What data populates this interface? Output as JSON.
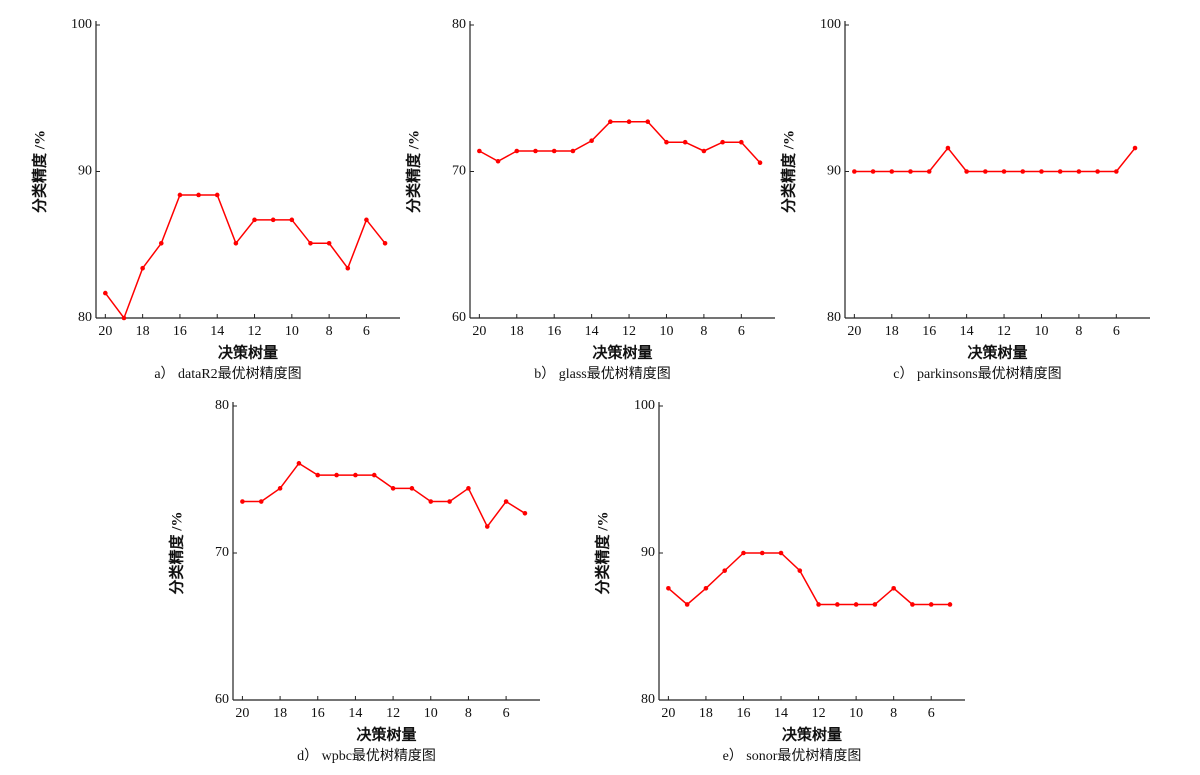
{
  "chart_data": [
    {
      "type": "line",
      "caption": "a） dataR2最优树精度图",
      "xlabel": "决策树量",
      "ylabel": "分类精度 /%",
      "color": "#ff0000",
      "x": [
        20,
        19,
        18,
        17,
        16,
        15,
        14,
        13,
        12,
        11,
        10,
        9,
        8,
        7,
        6,
        5
      ],
      "values": [
        81.7,
        80,
        83.4,
        85.1,
        88.4,
        88.4,
        88.4,
        85.1,
        86.7,
        86.7,
        86.7,
        85.1,
        85.1,
        83.4,
        86.7,
        85.1
      ],
      "xlim": [
        20.5,
        4.2
      ],
      "xticks": [
        20,
        18,
        16,
        14,
        12,
        10,
        8,
        6
      ],
      "ylim": [
        80,
        100
      ],
      "yticks": [
        80,
        90,
        100
      ]
    },
    {
      "type": "line",
      "caption": "b） glass最优树精度图",
      "xlabel": "决策树量",
      "ylabel": "分类精度 /%",
      "color": "#ff0000",
      "x": [
        20,
        19,
        18,
        17,
        16,
        15,
        14,
        13,
        12,
        11,
        10,
        9,
        8,
        7,
        6,
        5
      ],
      "values": [
        71.4,
        70.7,
        71.4,
        71.4,
        71.4,
        71.4,
        72.1,
        73.4,
        73.4,
        73.4,
        72.0,
        72.0,
        71.4,
        72.0,
        72.0,
        70.6
      ],
      "xlim": [
        20.5,
        4.2
      ],
      "xticks": [
        20,
        18,
        16,
        14,
        12,
        10,
        8,
        6
      ],
      "ylim": [
        60,
        80
      ],
      "yticks": [
        60,
        70,
        80
      ]
    },
    {
      "type": "line",
      "caption": "c） parkinsons最优树精度图",
      "xlabel": "决策树量",
      "ylabel": "分类精度 /%",
      "color": "#ff0000",
      "x": [
        20,
        19,
        18,
        17,
        16,
        15,
        14,
        13,
        12,
        11,
        10,
        9,
        8,
        7,
        6,
        5
      ],
      "values": [
        90,
        90,
        90,
        90,
        90,
        91.6,
        90,
        90,
        90,
        90,
        90,
        90,
        90,
        90,
        90,
        91.6
      ],
      "xlim": [
        20.5,
        4.2
      ],
      "xticks": [
        20,
        18,
        16,
        14,
        12,
        10,
        8,
        6
      ],
      "ylim": [
        80,
        100
      ],
      "yticks": [
        80,
        90,
        100
      ]
    },
    {
      "type": "line",
      "caption": "d） wpbc最优树精度图",
      "xlabel": "决策树量",
      "ylabel": "分类精度 /%",
      "color": "#ff0000",
      "x": [
        20,
        19,
        18,
        17,
        16,
        15,
        14,
        13,
        12,
        11,
        10,
        9,
        8,
        7,
        6,
        5
      ],
      "values": [
        73.5,
        73.5,
        74.4,
        76.1,
        75.3,
        75.3,
        75.3,
        75.3,
        74.4,
        74.4,
        73.5,
        73.5,
        74.4,
        71.8,
        73.5,
        72.7
      ],
      "xlim": [
        20.5,
        4.2
      ],
      "xticks": [
        20,
        18,
        16,
        14,
        12,
        10,
        8,
        6
      ],
      "ylim": [
        60,
        80
      ],
      "yticks": [
        60,
        70,
        80
      ]
    },
    {
      "type": "line",
      "caption": "e） sonor最优树精度图",
      "xlabel": "决策树量",
      "ylabel": "分类精度 /%",
      "color": "#ff0000",
      "x": [
        20,
        19,
        18,
        17,
        16,
        15,
        14,
        13,
        12,
        11,
        10,
        9,
        8,
        7,
        6,
        5
      ],
      "values": [
        87.6,
        86.5,
        87.6,
        88.8,
        90,
        90,
        90,
        88.8,
        86.5,
        86.5,
        86.5,
        86.5,
        87.6,
        86.5,
        86.5,
        86.5
      ],
      "xlim": [
        20.5,
        4.2
      ],
      "xticks": [
        20,
        18,
        16,
        14,
        12,
        10,
        8,
        6
      ],
      "ylim": [
        80,
        100
      ],
      "yticks": [
        80,
        90,
        100
      ]
    }
  ]
}
